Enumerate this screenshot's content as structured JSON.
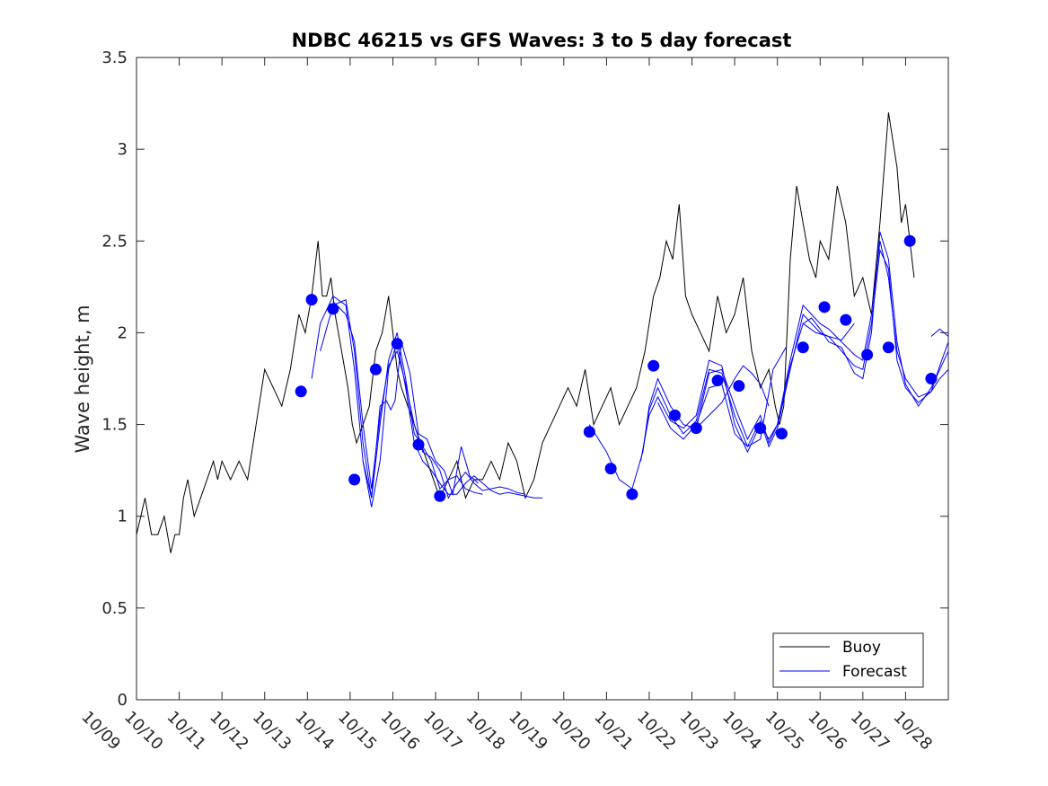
{
  "chart_data": {
    "type": "line",
    "title": "NDBC 46215 vs GFS Waves: 3 to 5 day forecast",
    "xlabel": "",
    "ylabel": "Wave height, m",
    "xlim": [
      0,
      19
    ],
    "ylim": [
      0,
      3.5
    ],
    "yticks": [
      "0",
      "0.5",
      "1",
      "1.5",
      "2",
      "2.5",
      "3",
      "3.5"
    ],
    "xticks": [
      "10/09",
      "10/10",
      "10/11",
      "10/12",
      "10/13",
      "10/14",
      "10/15",
      "10/16",
      "10/17",
      "10/18",
      "10/19",
      "10/20",
      "10/21",
      "10/22",
      "10/23",
      "10/24",
      "10/25",
      "10/26",
      "10/27",
      "10/28"
    ],
    "legend": {
      "location": "bottom-right",
      "entries": [
        "Buoy",
        "Forecast"
      ]
    },
    "colors": {
      "buoy": "#000000",
      "forecast": "#0000ff",
      "axis": "#262626"
    },
    "buoy": {
      "name": "Buoy",
      "x": [
        0,
        0.1,
        0.2,
        0.35,
        0.5,
        0.65,
        0.8,
        0.9,
        1.0,
        1.1,
        1.2,
        1.35,
        1.5,
        1.65,
        1.8,
        1.9,
        2.0,
        2.2,
        2.4,
        2.6,
        2.8,
        3.0,
        3.2,
        3.4,
        3.6,
        3.8,
        3.95,
        4.1,
        4.25,
        4.35,
        4.45,
        4.55,
        4.65,
        4.8,
        4.95,
        5.05,
        5.15,
        5.3,
        5.45,
        5.6,
        5.75,
        5.9,
        6.0,
        6.1,
        6.2,
        6.35,
        6.5,
        6.65,
        6.8,
        6.95,
        7.1,
        7.3,
        7.5,
        7.7,
        7.9,
        8.1,
        8.3,
        8.5,
        8.7,
        8.9,
        9.1,
        9.3,
        9.5,
        9.7,
        9.9,
        10.1,
        10.3,
        10.5,
        10.7,
        10.9,
        11.1,
        11.3,
        11.5,
        11.7,
        11.9,
        12.1,
        12.25,
        12.4,
        12.55,
        12.7,
        12.85,
        13.0,
        13.2,
        13.4,
        13.6,
        13.8,
        14.0,
        14.2,
        14.4,
        14.6,
        14.8,
        14.95,
        15.05,
        15.15,
        15.3,
        15.45,
        15.6,
        15.75,
        15.9,
        16.0,
        16.2,
        16.4,
        16.6,
        16.8,
        17.0,
        17.2,
        17.4,
        17.6,
        17.8,
        17.9,
        18.0,
        18.1,
        18.2
      ],
      "values": [
        0.9,
        1.0,
        1.1,
        0.9,
        0.9,
        1.0,
        0.8,
        0.9,
        0.9,
        1.1,
        1.2,
        1.0,
        1.1,
        1.2,
        1.3,
        1.2,
        1.3,
        1.2,
        1.3,
        1.2,
        1.5,
        1.8,
        1.7,
        1.6,
        1.8,
        2.1,
        2.0,
        2.2,
        2.5,
        2.2,
        2.2,
        2.3,
        2.1,
        1.9,
        1.7,
        1.5,
        1.4,
        1.5,
        1.6,
        1.9,
        2.0,
        2.2,
        2.0,
        1.8,
        1.7,
        1.6,
        1.5,
        1.4,
        1.3,
        1.2,
        1.1,
        1.2,
        1.3,
        1.1,
        1.2,
        1.2,
        1.3,
        1.2,
        1.4,
        1.3,
        1.1,
        1.2,
        1.4,
        1.5,
        1.6,
        1.7,
        1.6,
        1.8,
        1.5,
        1.6,
        1.7,
        1.5,
        1.6,
        1.7,
        1.9,
        2.2,
        2.3,
        2.5,
        2.4,
        2.7,
        2.2,
        2.1,
        2.0,
        1.9,
        2.2,
        2.0,
        2.1,
        2.3,
        1.9,
        1.7,
        1.8,
        1.6,
        1.5,
        1.6,
        2.4,
        2.8,
        2.6,
        2.4,
        2.3,
        2.5,
        2.4,
        2.8,
        2.6,
        2.2,
        2.3,
        2.1,
        2.6,
        3.2,
        2.9,
        2.6,
        2.7,
        2.5,
        2.3
      ]
    },
    "forecast_runs": [
      {
        "name": "Forecast",
        "x": [
          4.1,
          4.3,
          4.6,
          4.9,
          5.1,
          5.3,
          5.5,
          5.7,
          5.9,
          6.1,
          6.3,
          6.5,
          6.7,
          6.9,
          7.1,
          7.3,
          7.5,
          7.7,
          7.9,
          8.1,
          8.3,
          8.5,
          8.7,
          8.9,
          9.1,
          9.3,
          9.5
        ],
        "values": [
          1.75,
          2.05,
          2.2,
          2.15,
          1.8,
          1.3,
          1.05,
          1.3,
          1.8,
          1.95,
          1.7,
          1.4,
          1.3,
          1.25,
          1.18,
          1.12,
          1.12,
          1.18,
          1.22,
          1.18,
          1.14,
          1.12,
          1.13,
          1.12,
          1.11,
          1.1,
          1.1
        ]
      },
      {
        "name": "Forecast",
        "x": [
          4.3,
          4.6,
          4.9,
          5.1,
          5.3,
          5.5,
          5.7,
          5.9,
          6.1,
          6.3,
          6.5,
          6.7,
          6.9,
          7.1,
          7.3,
          7.5,
          7.7,
          7.9,
          8.1
        ],
        "values": [
          1.9,
          2.15,
          2.18,
          1.9,
          1.4,
          1.1,
          1.5,
          1.85,
          2.0,
          1.75,
          1.45,
          1.38,
          1.3,
          1.15,
          1.2,
          1.22,
          1.15,
          1.13,
          1.12
        ]
      },
      {
        "name": "Forecast",
        "x": [
          4.6,
          4.9,
          5.1,
          5.3,
          5.5,
          5.7,
          5.9,
          6.1,
          6.3,
          6.5,
          6.7,
          6.9,
          7.1,
          7.3,
          7.5,
          7.7,
          7.9,
          8.1,
          8.3,
          8.5,
          8.7,
          8.9,
          9.1
        ],
        "values": [
          2.17,
          2.1,
          1.95,
          1.5,
          1.15,
          1.55,
          1.82,
          1.9,
          1.72,
          1.5,
          1.35,
          1.32,
          1.25,
          1.1,
          1.18,
          1.24,
          1.18,
          1.14,
          1.15,
          1.16,
          1.15,
          1.13,
          1.12
        ]
      },
      {
        "name": "Forecast",
        "x": [
          5.3,
          5.5,
          5.7,
          5.85,
          5.95,
          6.05,
          6.2,
          6.4,
          6.6,
          6.8,
          7.0,
          7.2,
          7.4,
          7.6,
          7.8,
          8.0
        ],
        "values": [
          1.3,
          1.1,
          1.6,
          1.63,
          1.58,
          1.63,
          1.95,
          1.78,
          1.45,
          1.42,
          1.3,
          1.25,
          1.12,
          1.38,
          1.22,
          1.18
        ]
      },
      {
        "name": "Forecast",
        "x": [
          10.6,
          11.0,
          11.3,
          11.6,
          11.85,
          12.0,
          12.2,
          12.5,
          12.8,
          13.1,
          13.4,
          13.7,
          14.0,
          14.3,
          14.6,
          14.8,
          15.0,
          15.3,
          15.6,
          15.8,
          16.0,
          16.2,
          16.5,
          16.8,
          17.0,
          17.2,
          17.4,
          17.6,
          17.8,
          18.0,
          18.3,
          18.6,
          18.8,
          19.0
        ],
        "values": [
          1.5,
          1.35,
          1.2,
          1.15,
          1.35,
          1.6,
          1.75,
          1.6,
          1.5,
          1.48,
          1.78,
          1.8,
          1.6,
          1.42,
          1.55,
          1.4,
          1.5,
          1.85,
          2.15,
          2.1,
          2.05,
          2.02,
          1.95,
          1.88,
          1.85,
          2.1,
          2.5,
          2.3,
          1.9,
          1.75,
          1.65,
          1.68,
          1.75,
          1.8
        ]
      },
      {
        "name": "Forecast",
        "x": [
          11.85,
          12.0,
          12.2,
          12.5,
          12.8,
          13.1,
          13.4,
          13.7,
          14.0,
          14.3,
          14.6,
          14.8,
          15.0,
          15.3,
          15.6,
          15.8,
          16.0,
          16.2,
          16.5,
          16.8,
          17.0,
          17.2,
          17.4,
          17.6,
          17.8,
          18.0,
          18.3,
          18.6,
          18.8,
          19.0
        ],
        "values": [
          1.35,
          1.58,
          1.7,
          1.55,
          1.45,
          1.52,
          1.8,
          1.78,
          1.55,
          1.38,
          1.52,
          1.38,
          1.48,
          1.8,
          2.1,
          2.05,
          2.0,
          1.98,
          1.9,
          1.82,
          1.8,
          2.05,
          2.45,
          2.35,
          1.85,
          1.7,
          1.62,
          1.68,
          1.82,
          1.95
        ]
      },
      {
        "name": "Forecast",
        "x": [
          11.8,
          12.0,
          12.2,
          12.5,
          12.8,
          13.1,
          13.4,
          13.7,
          14.0,
          14.3,
          14.6,
          14.8,
          15.0,
          15.3,
          15.6,
          15.8,
          16.0,
          16.2,
          16.5,
          16.8,
          17.0,
          17.2,
          17.4,
          17.6,
          17.8,
          18.0,
          18.3,
          18.6,
          19.0
        ],
        "values": [
          1.3,
          1.55,
          1.65,
          1.52,
          1.48,
          1.55,
          1.85,
          1.82,
          1.5,
          1.35,
          1.5,
          1.42,
          1.5,
          1.82,
          2.05,
          2.08,
          2.02,
          1.95,
          1.92,
          1.78,
          1.75,
          2.0,
          2.55,
          2.4,
          1.95,
          1.72,
          1.6,
          1.7,
          1.9
        ]
      },
      {
        "name": "Forecast",
        "x": [
          12.2,
          12.5,
          12.8,
          13.1,
          13.4,
          13.7,
          14.0,
          14.3,
          14.6,
          14.9,
          15.2
        ],
        "values": [
          1.62,
          1.48,
          1.42,
          1.5,
          1.7,
          1.72,
          1.45,
          1.38,
          1.42,
          1.8,
          1.92
        ]
      },
      {
        "name": "Forecast",
        "x": [
          13.1,
          13.4,
          13.7,
          14.0,
          14.2,
          14.4,
          14.6,
          14.8
        ],
        "values": [
          1.48,
          1.55,
          1.62,
          1.75,
          1.82,
          1.78,
          1.72,
          1.6
        ]
      },
      {
        "name": "Forecast",
        "x": [
          15.6,
          15.9,
          16.2,
          16.5,
          16.8
        ],
        "values": [
          2.05,
          2.0,
          1.98,
          1.96,
          2.05
        ]
      },
      {
        "name": "Forecast",
        "x": [
          18.6,
          18.8,
          19.0
        ],
        "values": [
          1.98,
          2.02,
          1.98
        ]
      }
    ],
    "forecast_points": {
      "x": [
        3.85,
        4.1,
        4.6,
        5.1,
        5.6,
        6.1,
        6.6,
        7.1,
        10.6,
        11.1,
        11.6,
        12.1,
        12.6,
        13.1,
        13.6,
        14.1,
        14.6,
        15.1,
        15.6,
        16.1,
        16.6,
        17.1,
        17.6,
        18.1,
        18.6
      ],
      "values": [
        1.68,
        2.18,
        2.13,
        1.2,
        1.8,
        1.94,
        1.39,
        1.11,
        1.46,
        1.26,
        1.12,
        1.82,
        1.55,
        1.48,
        1.74,
        1.71,
        1.48,
        1.45,
        1.92,
        2.14,
        2.07,
        1.88,
        1.92,
        2.5,
        1.75
      ]
    }
  }
}
